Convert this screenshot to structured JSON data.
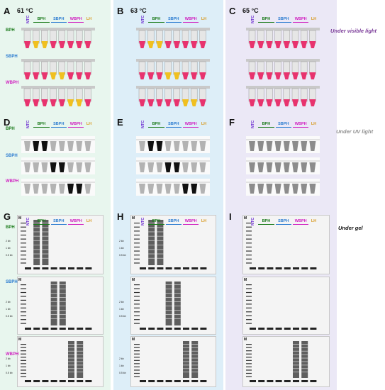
{
  "columns": [
    {
      "letters": [
        "A",
        "D",
        "G"
      ],
      "temperature": "61 °C",
      "bg": "#e8f6ee"
    },
    {
      "letters": [
        "B",
        "E",
        "H"
      ],
      "temperature": "63 °C",
      "bg": "#ddeef8"
    },
    {
      "letters": [
        "C",
        "F",
        "I"
      ],
      "temperature": "65 °C",
      "bg": "#ebe8f6"
    }
  ],
  "row_labels": [
    "BPH",
    "SBPH",
    "WBPH"
  ],
  "sample_headers": [
    "NTC",
    "BPH",
    "SBPH",
    "WBPH",
    "LH"
  ],
  "gel_marker_label": "M",
  "kb_labels": [
    "2 kb",
    "1 kb",
    "0.5 kb"
  ],
  "notes": {
    "visible": "Under visible light",
    "uv": "Under UV light",
    "gel": "Under gel"
  },
  "colors": {
    "bph": "#1a7a1a",
    "sbph": "#2a7bd0",
    "wbph": "#d020c0",
    "lh": "#d89a20",
    "ntc": "#6a2ad0",
    "pink": "#e8336e",
    "yellow": "#f0c020",
    "visible_note": "#7a3a98",
    "uv_note": "#909090"
  },
  "visible_tubes": [
    [
      [
        "pink",
        "yellow",
        "yellow",
        "pink",
        "pink",
        "pink",
        "pink",
        "pink"
      ],
      [
        "pink",
        "pink",
        "pink",
        "yellow",
        "yellow",
        "pink",
        "pink",
        "pink"
      ],
      [
        "pink",
        "pink",
        "pink",
        "pink",
        "pink",
        "yellow",
        "yellow",
        "pink"
      ]
    ],
    [
      [
        "pink",
        "yellow",
        "yellow",
        "pink",
        "pink",
        "pink",
        "pink",
        "pink"
      ],
      [
        "pink",
        "pink",
        "pink",
        "yellow",
        "yellow",
        "pink",
        "pink",
        "pink"
      ],
      [
        "pink",
        "pink",
        "pink",
        "pink",
        "pink",
        "yellow",
        "yellow",
        "pink"
      ]
    ],
    [
      [
        "pink",
        "pink",
        "pink",
        "pink",
        "pink",
        "pink",
        "pink",
        "pink"
      ],
      [
        "pink",
        "pink",
        "pink",
        "pink",
        "pink",
        "pink",
        "pink",
        "pink"
      ],
      [
        "pink",
        "pink",
        "pink",
        "pink",
        "pink",
        "pink",
        "pink",
        "pink"
      ]
    ]
  ],
  "uv_tubes": [
    [
      [
        0,
        1,
        1,
        0,
        0,
        0,
        0,
        0
      ],
      [
        0,
        0,
        0,
        1,
        1,
        0,
        0,
        0
      ],
      [
        0,
        0,
        0,
        0,
        0,
        1,
        1,
        0
      ]
    ],
    [
      [
        0,
        1,
        1,
        0,
        0,
        0,
        0,
        0
      ],
      [
        0,
        0,
        0,
        1,
        1,
        0,
        0,
        0
      ],
      [
        0,
        0,
        0,
        0,
        0,
        1,
        1,
        0
      ]
    ],
    [
      [
        0,
        0,
        0,
        0,
        0,
        0,
        0,
        0
      ],
      [
        0,
        0,
        0,
        0,
        0,
        0,
        0,
        0
      ],
      [
        0,
        0,
        0,
        0,
        0,
        0,
        0,
        0
      ]
    ]
  ],
  "gel_ladders": [
    [
      [
        0,
        1,
        1,
        0,
        0,
        0,
        0,
        0
      ],
      [
        0,
        0,
        0,
        1,
        1,
        0,
        0,
        0
      ],
      [
        0,
        0,
        0,
        0,
        0,
        1,
        1,
        0
      ]
    ],
    [
      [
        0,
        1,
        1,
        0,
        0,
        0,
        0,
        0
      ],
      [
        0,
        0,
        0,
        1,
        1,
        0,
        0,
        0
      ],
      [
        0,
        0,
        0,
        0,
        0,
        1,
        1,
        0
      ]
    ],
    [
      [
        0,
        0,
        0,
        0,
        0,
        0,
        0,
        0
      ],
      [
        0,
        0,
        0,
        0,
        0,
        0,
        0,
        0
      ],
      [
        0,
        0,
        0,
        0,
        0,
        1,
        1,
        0
      ]
    ]
  ]
}
